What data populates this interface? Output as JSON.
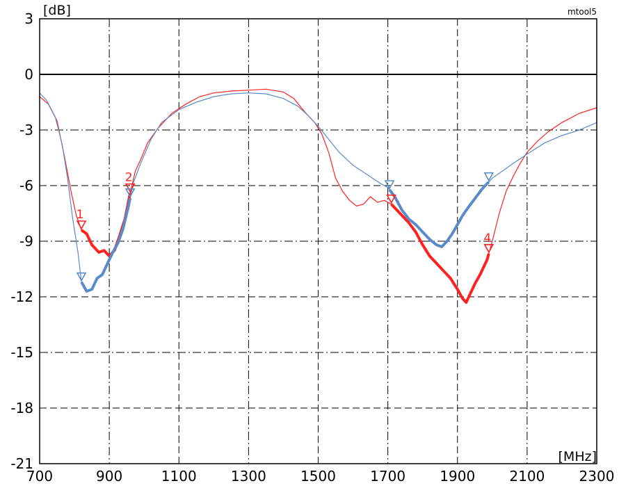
{
  "chart_data": {
    "type": "line",
    "title": "",
    "ylabel": "[dB]",
    "xlabel": "[MHz]",
    "corner_label": "mtool5",
    "xlim": [
      700,
      2300
    ],
    "ylim": [
      -21,
      3
    ],
    "x_ticks": [
      700,
      900,
      1100,
      1300,
      1500,
      1700,
      1900,
      2100,
      2300
    ],
    "y_ticks": [
      3,
      0,
      -3,
      -6,
      -9,
      -12,
      -15,
      -18,
      -21
    ],
    "grid": true,
    "series": [
      {
        "color": "#ff2020",
        "points": [
          [
            700,
            -1.2
          ],
          [
            725,
            -1.6
          ],
          [
            750,
            -2.5
          ],
          [
            770,
            -4.3
          ],
          [
            790,
            -6.3
          ],
          [
            805,
            -7.6
          ],
          [
            820,
            -8.4
          ],
          [
            835,
            -8.6
          ],
          [
            850,
            -9.2
          ],
          [
            870,
            -9.6
          ],
          [
            885,
            -9.5
          ],
          [
            900,
            -9.8
          ],
          [
            915,
            -9.5
          ],
          [
            930,
            -8.7
          ],
          [
            945,
            -7.8
          ],
          [
            960,
            -6.4
          ],
          [
            975,
            -5.2
          ],
          [
            990,
            -4.6
          ],
          [
            1010,
            -3.7
          ],
          [
            1040,
            -2.9
          ],
          [
            1080,
            -2.1
          ],
          [
            1120,
            -1.6
          ],
          [
            1160,
            -1.2
          ],
          [
            1200,
            -1.0
          ],
          [
            1250,
            -0.9
          ],
          [
            1300,
            -0.85
          ],
          [
            1350,
            -0.8
          ],
          [
            1400,
            -0.95
          ],
          [
            1430,
            -1.3
          ],
          [
            1460,
            -2.0
          ],
          [
            1490,
            -2.6
          ],
          [
            1510,
            -3.2
          ],
          [
            1530,
            -4.2
          ],
          [
            1550,
            -5.6
          ],
          [
            1570,
            -6.3
          ],
          [
            1590,
            -6.8
          ],
          [
            1610,
            -7.1
          ],
          [
            1630,
            -7.0
          ],
          [
            1650,
            -6.6
          ],
          [
            1670,
            -6.9
          ],
          [
            1690,
            -6.8
          ],
          [
            1710,
            -7.0
          ],
          [
            1730,
            -7.4
          ],
          [
            1760,
            -8.0
          ],
          [
            1780,
            -8.5
          ],
          [
            1800,
            -9.2
          ],
          [
            1820,
            -9.8
          ],
          [
            1850,
            -10.4
          ],
          [
            1880,
            -11.0
          ],
          [
            1900,
            -11.6
          ],
          [
            1915,
            -12.1
          ],
          [
            1925,
            -12.3
          ],
          [
            1935,
            -11.9
          ],
          [
            1950,
            -11.3
          ],
          [
            1965,
            -10.8
          ],
          [
            1985,
            -10.0
          ],
          [
            2000,
            -9.0
          ],
          [
            2020,
            -7.5
          ],
          [
            2040,
            -6.3
          ],
          [
            2060,
            -5.5
          ],
          [
            2080,
            -4.8
          ],
          [
            2100,
            -4.2
          ],
          [
            2130,
            -3.6
          ],
          [
            2160,
            -3.1
          ],
          [
            2200,
            -2.6
          ],
          [
            2250,
            -2.1
          ],
          [
            2300,
            -1.8
          ]
        ]
      },
      {
        "color": "#5b8ac8",
        "points": [
          [
            700,
            -1.0
          ],
          [
            720,
            -1.4
          ],
          [
            745,
            -2.3
          ],
          [
            765,
            -3.8
          ],
          [
            780,
            -5.6
          ],
          [
            795,
            -7.8
          ],
          [
            810,
            -9.6
          ],
          [
            820,
            -11.2
          ],
          [
            835,
            -11.7
          ],
          [
            850,
            -11.6
          ],
          [
            865,
            -11.0
          ],
          [
            880,
            -10.8
          ],
          [
            895,
            -10.2
          ],
          [
            910,
            -9.6
          ],
          [
            925,
            -9.1
          ],
          [
            940,
            -8.3
          ],
          [
            955,
            -7.1
          ],
          [
            970,
            -5.8
          ],
          [
            990,
            -4.8
          ],
          [
            1020,
            -3.5
          ],
          [
            1050,
            -2.6
          ],
          [
            1100,
            -1.9
          ],
          [
            1150,
            -1.5
          ],
          [
            1200,
            -1.2
          ],
          [
            1250,
            -1.05
          ],
          [
            1300,
            -1.0
          ],
          [
            1350,
            -1.05
          ],
          [
            1400,
            -1.3
          ],
          [
            1440,
            -1.7
          ],
          [
            1470,
            -2.2
          ],
          [
            1500,
            -2.8
          ],
          [
            1530,
            -3.5
          ],
          [
            1560,
            -4.2
          ],
          [
            1600,
            -4.9
          ],
          [
            1640,
            -5.4
          ],
          [
            1680,
            -5.9
          ],
          [
            1700,
            -6.1
          ],
          [
            1720,
            -6.6
          ],
          [
            1740,
            -7.3
          ],
          [
            1760,
            -7.8
          ],
          [
            1780,
            -8.1
          ],
          [
            1800,
            -8.5
          ],
          [
            1820,
            -8.9
          ],
          [
            1840,
            -9.2
          ],
          [
            1855,
            -9.3
          ],
          [
            1870,
            -9.0
          ],
          [
            1885,
            -8.6
          ],
          [
            1900,
            -8.1
          ],
          [
            1915,
            -7.6
          ],
          [
            1930,
            -7.2
          ],
          [
            1950,
            -6.7
          ],
          [
            1970,
            -6.2
          ],
          [
            1985,
            -5.9
          ],
          [
            2000,
            -5.6
          ],
          [
            2030,
            -5.2
          ],
          [
            2060,
            -4.8
          ],
          [
            2100,
            -4.3
          ],
          [
            2150,
            -3.7
          ],
          [
            2200,
            -3.3
          ],
          [
            2250,
            -3.0
          ],
          [
            2300,
            -2.6
          ]
        ]
      }
    ],
    "highlights": [
      {
        "series": 0,
        "x_from": 820,
        "x_to": 960
      },
      {
        "series": 0,
        "x_from": 1710,
        "x_to": 1990
      },
      {
        "series": 1,
        "x_from": 820,
        "x_to": 960
      },
      {
        "series": 1,
        "x_from": 1705,
        "x_to": 1990
      }
    ],
    "markers": [
      {
        "series": 0,
        "x": 820,
        "label": "1"
      },
      {
        "series": 0,
        "x": 960,
        "label": "2"
      },
      {
        "series": 0,
        "x": 1710,
        "label": ""
      },
      {
        "series": 0,
        "x": 1990,
        "label": "4"
      },
      {
        "series": 1,
        "x": 820,
        "label": ""
      },
      {
        "series": 1,
        "x": 960,
        "label": ""
      },
      {
        "series": 1,
        "x": 1705,
        "label": ""
      },
      {
        "series": 1,
        "x": 1990,
        "label": ""
      }
    ]
  }
}
